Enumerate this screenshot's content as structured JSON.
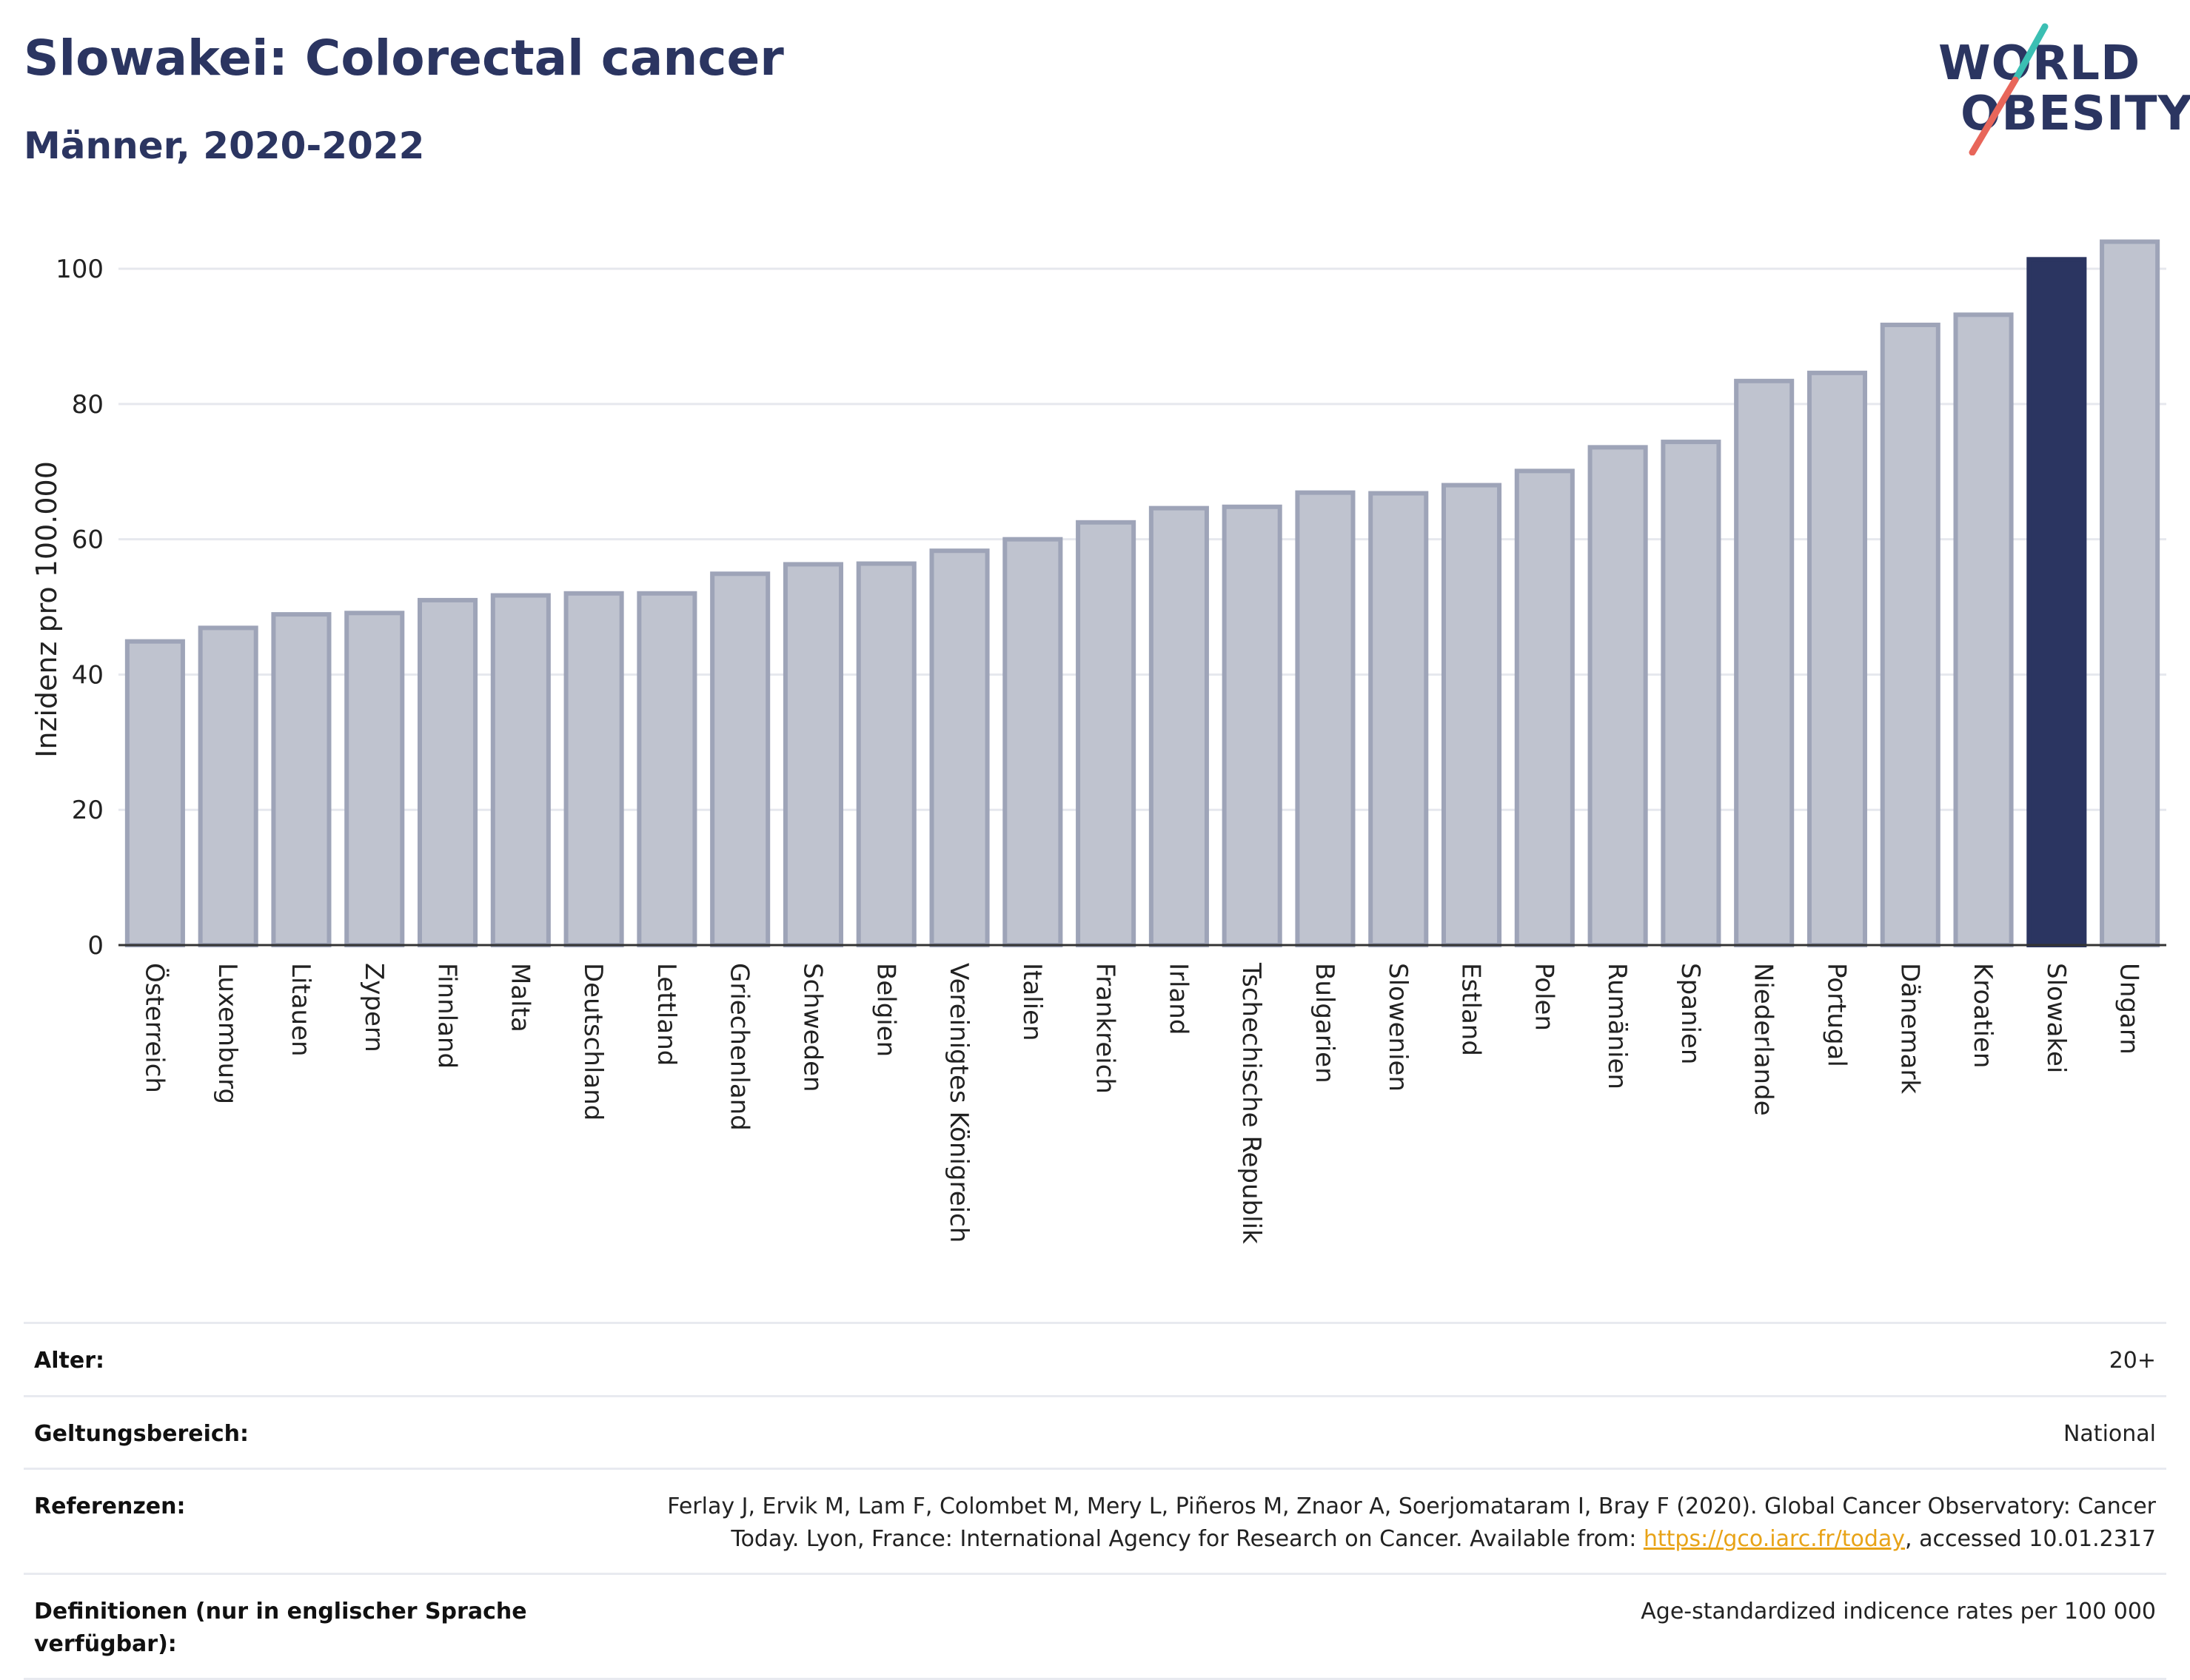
{
  "header": {
    "title": "Slowakei: Colorectal cancer",
    "subtitle": "Männer, 2020-2022"
  },
  "logo": {
    "line1": "WORLD",
    "line2": "OBESITY",
    "colors": {
      "text": "#2b3561",
      "slash_top": "#3bbfb3",
      "slash_bottom": "#e8665a"
    }
  },
  "chart_data": {
    "type": "bar",
    "title": "",
    "xlabel": "",
    "ylabel": "Inzidenz pro 100.000",
    "ylim": [
      0,
      108
    ],
    "yticks": [
      0,
      20,
      40,
      60,
      80,
      100
    ],
    "grid": true,
    "highlight": "Slowakei",
    "colors": {
      "bar": "#bfc3cf",
      "bar_edge": "#9ea4b8",
      "highlight": "#2b3561"
    },
    "categories": [
      "Österreich",
      "Luxemburg",
      "Litauen",
      "Zypern",
      "Finnland",
      "Malta",
      "Deutschland",
      "Lettland",
      "Griechenland",
      "Schweden",
      "Belgien",
      "Vereinigtes Königreich",
      "Italien",
      "Frankreich",
      "Irland",
      "Tschechische Republik",
      "Bulgarien",
      "Slowenien",
      "Estland",
      "Polen",
      "Rumänien",
      "Spanien",
      "Niederlande",
      "Portugal",
      "Dänemark",
      "Kroatien",
      "Slowakei",
      "Ungarn"
    ],
    "values": [
      44.9,
      46.9,
      48.9,
      49.1,
      51.0,
      51.7,
      52.0,
      52.0,
      54.9,
      56.3,
      56.4,
      58.3,
      60.0,
      62.5,
      64.6,
      64.8,
      66.9,
      66.8,
      68.0,
      70.1,
      73.6,
      74.4,
      83.4,
      84.6,
      91.7,
      93.2,
      101.4,
      104.0
    ]
  },
  "info": {
    "rows": [
      {
        "label": "Alter:",
        "value": "20+"
      },
      {
        "label": "Geltungsbereich:",
        "value": "National"
      },
      {
        "label": "Referenzen:",
        "value_line1": "Ferlay J, Ervik M, Lam F, Colombet M, Mery L, Piñeros M, Znaor A, Soerjomataram I, Bray F (2020). Global Cancer Observatory: Cancer",
        "value_pre": "Today. Lyon, France: International Agency for Research on Cancer. Available from: ",
        "value_link": "https://gco.iarc.fr/today",
        "value_post": ", accessed 10.01.2317"
      },
      {
        "label": "Definitionen (nur in englischer Sprache verfügbar):",
        "value": "Age-standardized indicence rates per 100 000"
      }
    ]
  }
}
